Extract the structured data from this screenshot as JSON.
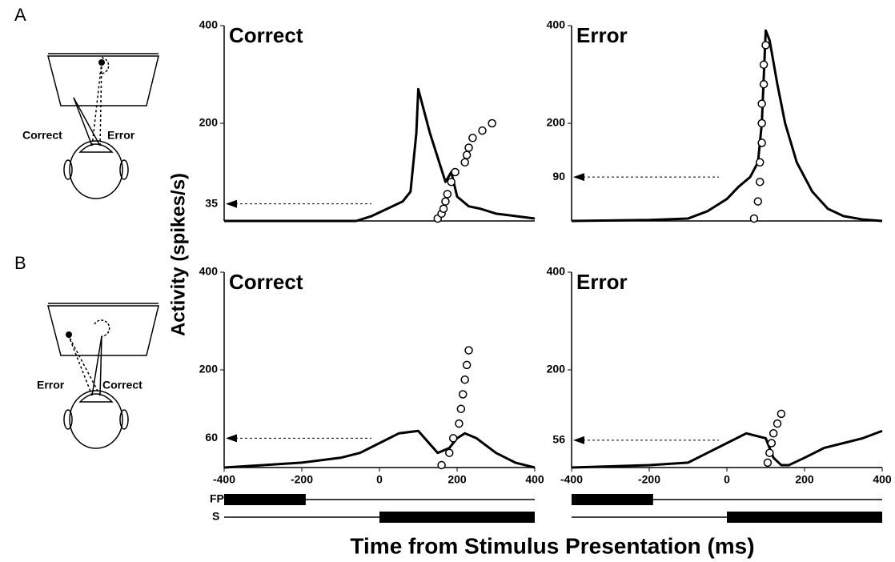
{
  "panel_labels": [
    "A",
    "B"
  ],
  "diagrams": [
    {
      "labels": [
        "Correct",
        "Error"
      ]
    },
    {
      "labels": [
        "Error",
        "Correct"
      ]
    }
  ],
  "y_axis_label": "Activity (spikes/s)",
  "x_axis_label": "Time from Stimulus Presentation (ms)",
  "events": [
    {
      "name": "FP",
      "thick": [
        -400,
        -190
      ]
    },
    {
      "name": "S",
      "thick": [
        0,
        400
      ]
    }
  ],
  "chart_data": [
    {
      "type": "line",
      "title": "Correct",
      "xlim": [
        -400,
        400
      ],
      "ylim": [
        0,
        400
      ],
      "yticks": [
        200,
        400
      ],
      "baseline": 35,
      "x": [
        -400,
        -60,
        -20,
        20,
        60,
        80,
        95,
        100,
        110,
        130,
        150,
        170,
        185,
        200,
        230,
        260,
        300,
        350,
        400
      ],
      "values": [
        0,
        0,
        10,
        25,
        40,
        60,
        180,
        270,
        240,
        180,
        130,
        80,
        100,
        50,
        30,
        25,
        15,
        10,
        5
      ],
      "saccades": {
        "x": [
          150,
          160,
          165,
          170,
          175,
          185,
          195,
          220,
          225,
          230,
          240,
          265,
          290
        ],
        "y": [
          5,
          15,
          25,
          40,
          55,
          80,
          100,
          120,
          135,
          150,
          170,
          185,
          200
        ]
      }
    },
    {
      "type": "line",
      "title": "Error",
      "xlim": [
        -400,
        400
      ],
      "ylim": [
        0,
        400
      ],
      "yticks": [
        200,
        400
      ],
      "baseline": 90,
      "x": [
        -400,
        -200,
        -100,
        -50,
        0,
        30,
        60,
        80,
        90,
        100,
        110,
        130,
        150,
        180,
        220,
        260,
        300,
        350,
        400
      ],
      "values": [
        0,
        2,
        5,
        20,
        45,
        70,
        90,
        120,
        200,
        390,
        370,
        280,
        200,
        120,
        60,
        25,
        10,
        3,
        0
      ],
      "saccades": {
        "x": [
          70,
          80,
          85,
          85,
          90,
          90,
          90,
          95,
          95,
          100
        ],
        "y": [
          5,
          40,
          80,
          120,
          160,
          200,
          240,
          280,
          320,
          360
        ]
      }
    },
    {
      "type": "line",
      "title": "Correct",
      "xlim": [
        -400,
        400
      ],
      "ylim": [
        0,
        400
      ],
      "yticks": [
        200,
        400
      ],
      "xticks": [
        -400,
        -200,
        0,
        200,
        400
      ],
      "baseline": 60,
      "x": [
        -400,
        -300,
        -200,
        -100,
        -50,
        0,
        50,
        100,
        150,
        180,
        200,
        220,
        250,
        300,
        350,
        400
      ],
      "values": [
        0,
        5,
        10,
        20,
        30,
        50,
        70,
        75,
        30,
        40,
        60,
        70,
        60,
        30,
        10,
        0
      ],
      "saccades": {
        "x": [
          160,
          180,
          190,
          205,
          210,
          215,
          220,
          225,
          230
        ],
        "y": [
          5,
          30,
          60,
          90,
          120,
          150,
          180,
          210,
          240
        ]
      }
    },
    {
      "type": "line",
      "title": "Error",
      "xlim": [
        -400,
        400
      ],
      "ylim": [
        0,
        400
      ],
      "yticks": [
        200,
        400
      ],
      "xticks": [
        -400,
        -200,
        0,
        200,
        400
      ],
      "baseline": 56,
      "x": [
        -400,
        -200,
        -100,
        -50,
        0,
        50,
        100,
        120,
        140,
        160,
        200,
        250,
        300,
        350,
        400
      ],
      "values": [
        0,
        5,
        10,
        30,
        50,
        70,
        60,
        20,
        5,
        5,
        20,
        40,
        50,
        60,
        75
      ],
      "saccades": {
        "x": [
          105,
          110,
          115,
          120,
          130,
          140
        ],
        "y": [
          10,
          30,
          50,
          70,
          90,
          110
        ]
      }
    }
  ]
}
